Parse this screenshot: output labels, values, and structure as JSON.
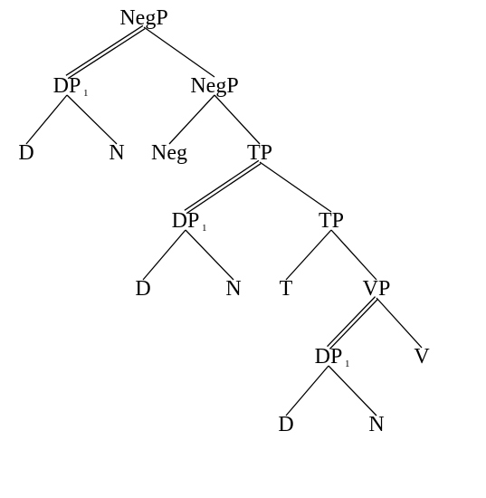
{
  "diagram": {
    "root": {
      "label": "NegP",
      "children": [
        {
          "label": "DP",
          "subscript": "1",
          "double": true,
          "children": [
            {
              "label": "D"
            },
            {
              "label": "N"
            }
          ]
        },
        {
          "label": "NegP",
          "children": [
            {
              "label": "Neg"
            },
            {
              "label": "TP",
              "children": [
                {
                  "label": "DP",
                  "subscript": "1",
                  "double": true,
                  "children": [
                    {
                      "label": "D"
                    },
                    {
                      "label": "N"
                    }
                  ]
                },
                {
                  "label": "TP",
                  "children": [
                    {
                      "label": "T"
                    },
                    {
                      "label": "VP",
                      "children": [
                        {
                          "label": "DP",
                          "subscript": "1",
                          "double": true,
                          "children": [
                            {
                              "label": "D"
                            },
                            {
                              "label": "N"
                            }
                          ]
                        },
                        {
                          "label": "V"
                        }
                      ]
                    }
                  ]
                }
              ]
            }
          ]
        }
      ]
    }
  }
}
